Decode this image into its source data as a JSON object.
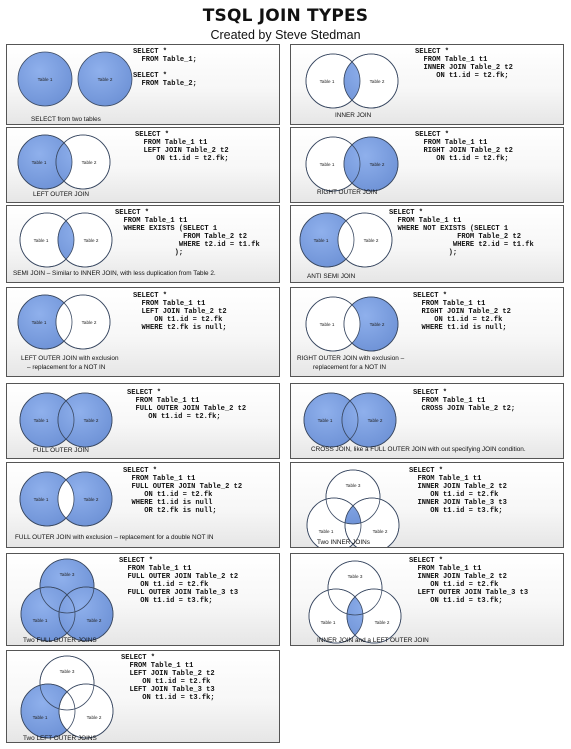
{
  "header": {
    "title": "TSQL JOIN TYPES",
    "subtitle": "Created by Steve Stedman"
  },
  "colors": {
    "fill": "#6e92d6",
    "stroke": "#3b4a63",
    "empty": "#ffffff"
  },
  "circle_labels": {
    "t1": "Table 1",
    "t2": "Table 2",
    "t3": "Table 3"
  },
  "cards": [
    {
      "id": "select-two-tables",
      "caption": [
        "SELECT from two tables"
      ],
      "sql": "SELECT *\n  FROM Table_1;\n\nSELECT *\n  FROM Table_2;"
    },
    {
      "id": "inner-join",
      "caption": [
        "INNER JOIN"
      ],
      "sql": "SELECT *\n  FROM Table_1 t1\n  INNER JOIN Table_2 t2\n     ON t1.id = t2.fk;"
    },
    {
      "id": "left-outer-join",
      "caption": [
        "LEFT OUTER JOIN"
      ],
      "sql": "SELECT *\n  FROM Table_1 t1\n  LEFT JOIN Table_2 t2\n     ON t1.id = t2.fk;"
    },
    {
      "id": "right-outer-join",
      "caption": [
        "RIGHT OUTER JOIN"
      ],
      "sql": "SELECT *\n  FROM Table_1 t1\n  RIGHT JOIN Table_2 t2\n     ON t1.id = t2.fk;"
    },
    {
      "id": "semi-join",
      "caption": [
        "SEMI JOIN – Similar to INNER JOIN, with less duplication from Table 2."
      ],
      "sql": "SELECT *\n  FROM Table_1 t1\n  WHERE EXISTS (SELECT 1\n                FROM Table_2 t2\n               WHERE t2.id = t1.fk\n              );"
    },
    {
      "id": "anti-semi-join",
      "caption": [
        "ANTI SEMI JOIN"
      ],
      "sql": "SELECT *\n  FROM Table_1 t1\n  WHERE NOT EXISTS (SELECT 1\n                FROM Table_2 t2\n               WHERE t2.id = t1.fk\n              );"
    },
    {
      "id": "left-outer-join-exclusion",
      "caption": [
        "LEFT OUTER JOIN with exclusion",
        "– replacement for a NOT IN"
      ],
      "sql": "SELECT *\n  FROM Table_1 t1\n  LEFT JOIN Table_2 t2\n     ON t1.id = t2.fk\n  WHERE t2.fk is null;"
    },
    {
      "id": "right-outer-join-exclusion",
      "caption": [
        "RIGHT OUTER JOIN with exclusion –",
        "replacement for a NOT IN"
      ],
      "sql": "SELECT *\n  FROM Table_1 t1\n  RIGHT JOIN Table_2 t2\n     ON t1.id = t2.fk\n  WHERE t1.id is null;"
    },
    {
      "id": "full-outer-join",
      "caption": [
        "FULL OUTER JOIN"
      ],
      "sql": "SELECT *\n  FROM Table_1 t1\n  FULL OUTER JOIN Table_2 t2\n     ON t1.id = t2.fk;"
    },
    {
      "id": "cross-join",
      "caption": [
        "CROSS JOIN, like a FULL OUTER JOIN with out specifying JOIN condition."
      ],
      "sql": "SELECT *\n  FROM Table_1 t1\n  CROSS JOIN Table_2 t2;"
    },
    {
      "id": "full-outer-join-exclusion",
      "caption": [
        "FULL OUTER JOIN with exclusion – replacement for a double NOT IN"
      ],
      "sql": "SELECT *\n  FROM Table_1 t1\n  FULL OUTER JOIN Table_2 t2\n     ON t1.id = t2.fk\n  WHERE t1.id is null\n     OR t2.fk is null;"
    },
    {
      "id": "two-inner-joins",
      "caption": [
        "Two INNER JOINs"
      ],
      "sql": "SELECT *\n  FROM Table_1 t1\n  INNER JOIN Table_2 t2\n     ON t1.id = t2.fk\n  INNER JOIN Table_3 t3\n     ON t1.id = t3.fk;"
    },
    {
      "id": "two-full-outer-joins",
      "caption": [
        "Two FULL OUTER JOINS"
      ],
      "sql": "SELECT *\n  FROM Table_1 t1\n  FULL OUTER JOIN Table_2 t2\n     ON t1.id = t2.fk\n  FULL OUTER JOIN Table_3 t3\n     ON t1.id = t3.fk;"
    },
    {
      "id": "inner-join-and-left-outer-join",
      "caption": [
        "INNER JOIN and a LEFT OUTER JOIN"
      ],
      "sql": "SELECT *\n  FROM Table_1 t1\n  INNER JOIN Table_2 t2\n     ON t1.id = t2.fk\n  LEFT OUTER JOIN Table_3 t3\n     ON t1.id = t3.fk;"
    },
    {
      "id": "two-left-outer-joins",
      "caption": [
        "Two LEFT OUTER JOINS"
      ],
      "sql": "SELECT *\n  FROM Table_1 t1\n  LEFT JOIN Table_2 t2\n     ON t1.id = t2.fk\n  LEFT JOIN Table_3 t3\n     ON t1.id = t3.fk;"
    }
  ]
}
